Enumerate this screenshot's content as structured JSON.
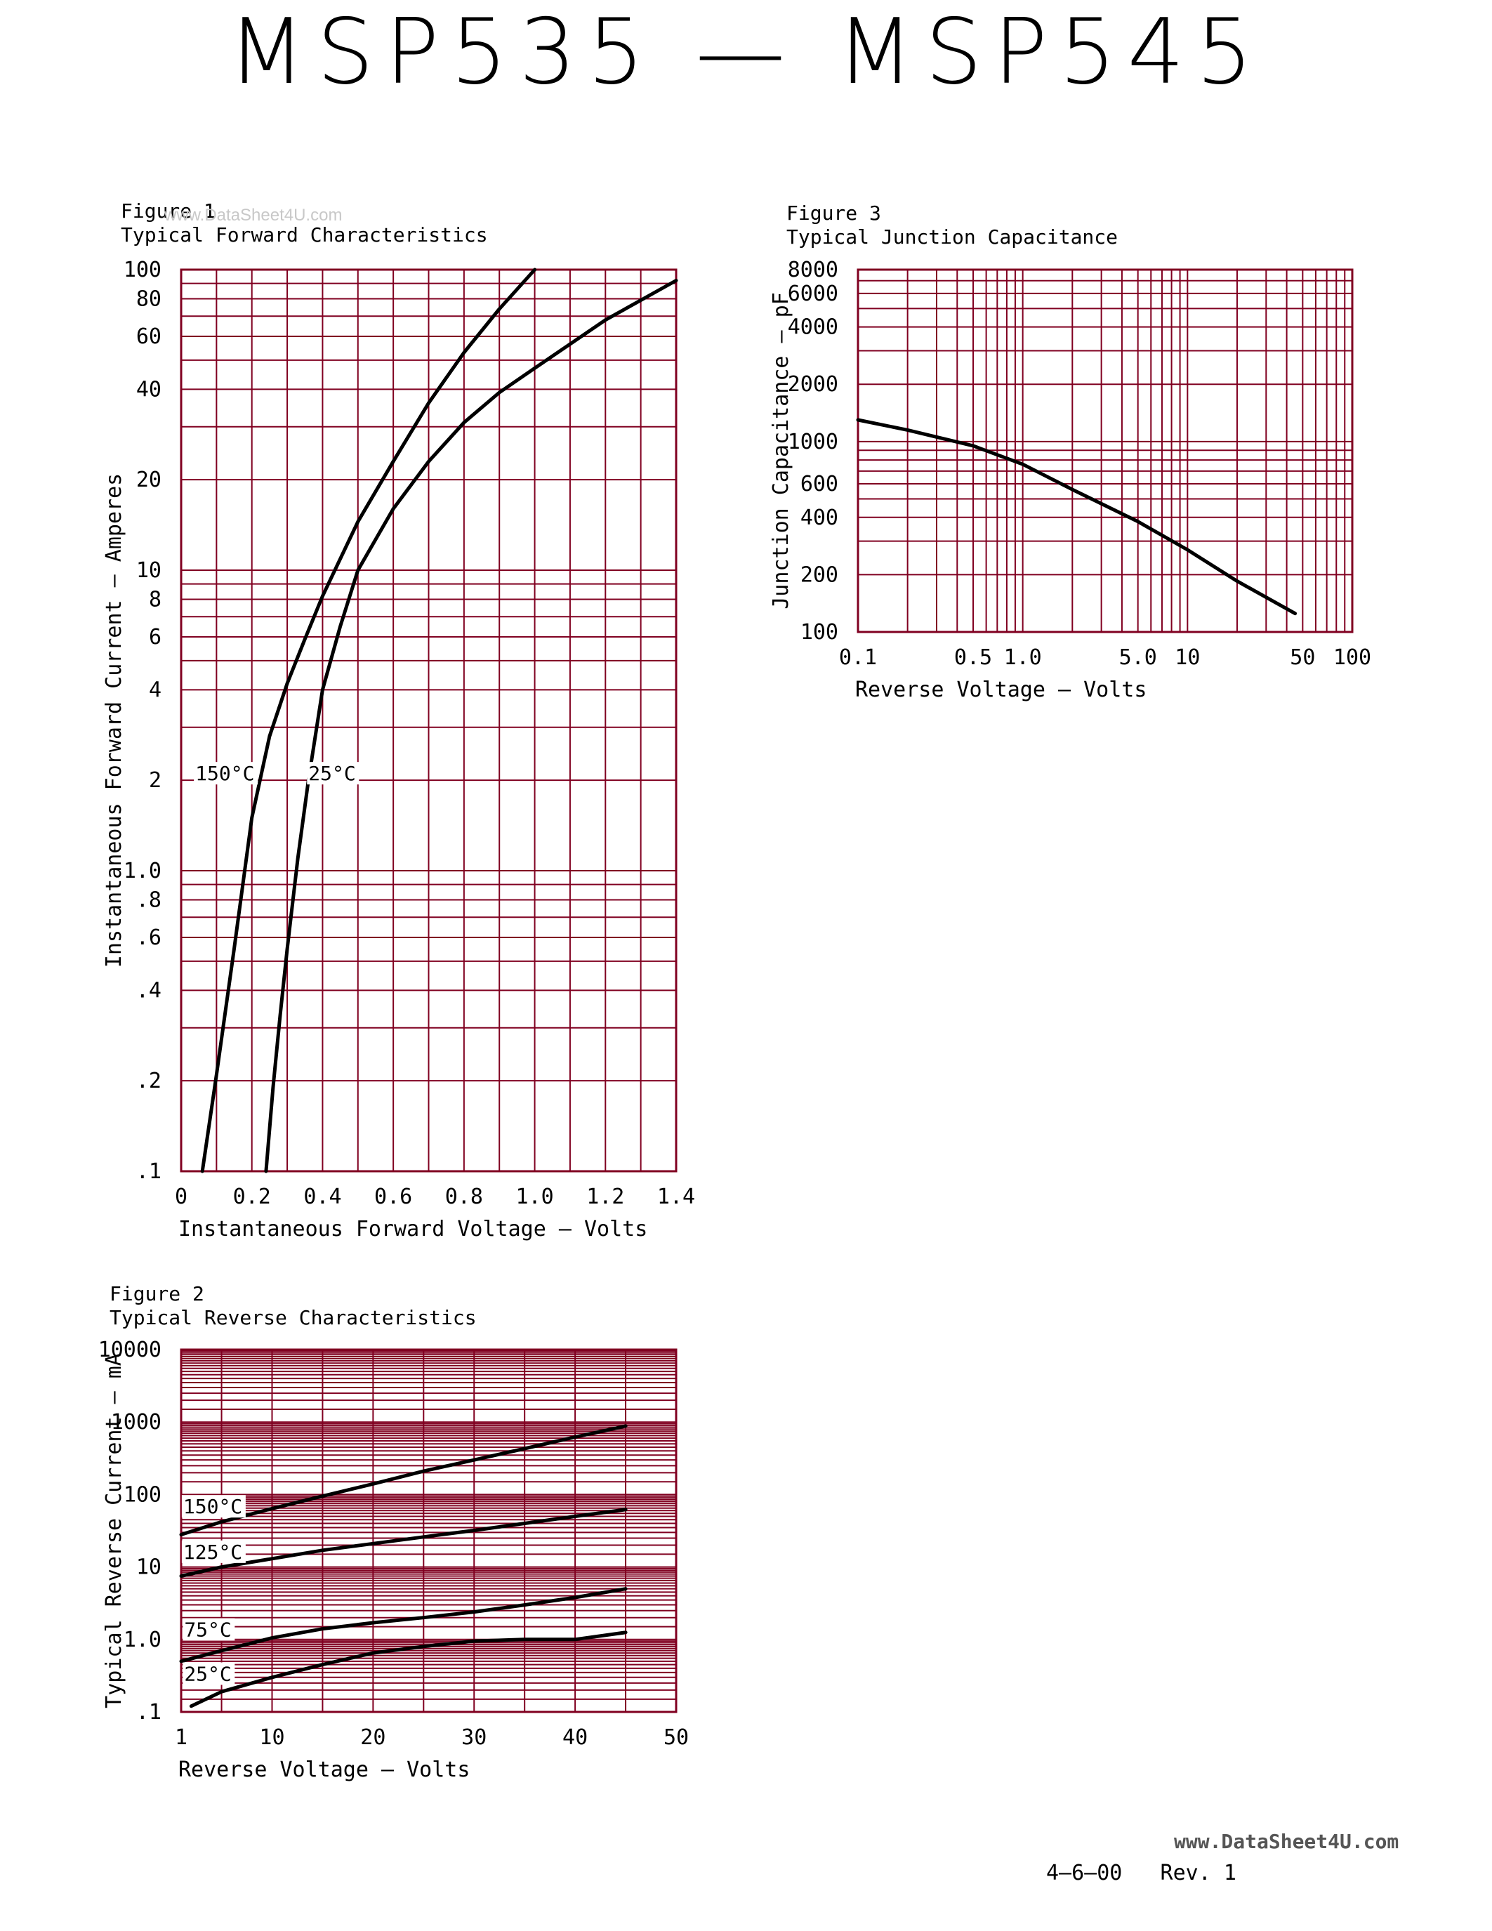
{
  "page": {
    "title": "MSP535 — MSP545",
    "watermark": "www.DataSheet4U.com",
    "footer_url": "www.DataSheet4U.com",
    "footer_rev": "4—6—00   Rev. 1"
  },
  "colors": {
    "grid": "#800020",
    "curve": "#000000"
  },
  "figures": [
    {
      "label": "Figure 1",
      "caption": "Typical Forward Characteristics"
    },
    {
      "label": "Figure 2",
      "caption": "Typical Reverse Characteristics"
    },
    {
      "label": "Figure 3",
      "caption": "Typical Junction Capacitance"
    }
  ],
  "chart_data": [
    {
      "id": "fig1",
      "type": "line",
      "title": "Figure 1 Typical Forward Characteristics",
      "xlabel": "Instantaneous Forward Voltage — Volts",
      "ylabel": "Instantaneous Forward Current — Amperes",
      "xlim": [
        0,
        1.4
      ],
      "ylim": [
        0.1,
        100
      ],
      "yscale": "log",
      "grid": true,
      "x_ticks": [
        {
          "v": 0,
          "t": "0"
        },
        {
          "v": 0.2,
          "t": "0.2"
        },
        {
          "v": 0.4,
          "t": "0.4"
        },
        {
          "v": 0.6,
          "t": "0.6"
        },
        {
          "v": 0.8,
          "t": "0.8"
        },
        {
          "v": 1.0,
          "t": "1.0"
        },
        {
          "v": 1.2,
          "t": "1.2"
        },
        {
          "v": 1.4,
          "t": "1.4"
        }
      ],
      "y_ticks": [
        {
          "v": 0.1,
          "t": ".1"
        },
        {
          "v": 0.2,
          "t": ".2"
        },
        {
          "v": 0.4,
          "t": ".4"
        },
        {
          "v": 0.6,
          "t": ".6"
        },
        {
          "v": 0.8,
          "t": ".8"
        },
        {
          "v": 1,
          "t": "1.0"
        },
        {
          "v": 2,
          "t": "2"
        },
        {
          "v": 4,
          "t": "4"
        },
        {
          "v": 6,
          "t": "6"
        },
        {
          "v": 8,
          "t": "8"
        },
        {
          "v": 10,
          "t": "10"
        },
        {
          "v": 20,
          "t": "20"
        },
        {
          "v": 40,
          "t": "40"
        },
        {
          "v": 60,
          "t": "60"
        },
        {
          "v": 80,
          "t": "80"
        },
        {
          "v": 100,
          "t": "100"
        }
      ],
      "series": [
        {
          "name": "150°C",
          "label_at": [
            0.04,
            2
          ],
          "x": [
            0.06,
            0.1,
            0.15,
            0.2,
            0.25,
            0.3,
            0.35,
            0.4,
            0.5,
            0.6,
            0.7,
            0.8,
            0.9,
            1.0
          ],
          "y": [
            0.1,
            0.21,
            0.55,
            1.5,
            2.8,
            4.2,
            5.9,
            8.2,
            14.5,
            23,
            36,
            53,
            74,
            100
          ]
        },
        {
          "name": "25°C",
          "label_at": [
            0.36,
            2
          ],
          "x": [
            0.24,
            0.26,
            0.28,
            0.3,
            0.33,
            0.36,
            0.4,
            0.45,
            0.5,
            0.6,
            0.7,
            0.8,
            0.9,
            1.0,
            1.2,
            1.4
          ],
          "y": [
            0.1,
            0.19,
            0.33,
            0.55,
            1.1,
            2.0,
            4.0,
            6.5,
            10,
            16,
            23,
            31,
            39,
            47,
            68,
            92
          ]
        }
      ]
    },
    {
      "id": "fig2",
      "type": "line",
      "title": "Figure 2 Typical Reverse Characteristics",
      "xlabel": "Reverse Voltage — Volts",
      "ylabel": "Typical Reverse Current — mA",
      "xlim": [
        1,
        50
      ],
      "ylim": [
        0.1,
        10000
      ],
      "yscale": "log",
      "grid": true,
      "x_ticks": [
        {
          "v": 1,
          "t": "1"
        },
        {
          "v": 10,
          "t": "10"
        },
        {
          "v": 20,
          "t": "20"
        },
        {
          "v": 30,
          "t": "30"
        },
        {
          "v": 40,
          "t": "40"
        },
        {
          "v": 50,
          "t": "50"
        }
      ],
      "y_ticks": [
        {
          "v": 0.1,
          "t": ".1"
        },
        {
          "v": 1,
          "t": "1.0"
        },
        {
          "v": 10,
          "t": "10"
        },
        {
          "v": 100,
          "t": "100"
        },
        {
          "v": 1000,
          "t": "1000"
        },
        {
          "v": 10000,
          "t": "10000"
        }
      ],
      "series": [
        {
          "name": "150°C",
          "label_at": [
            1.2,
            55
          ],
          "x": [
            1,
            5,
            10,
            15,
            20,
            25,
            30,
            35,
            40,
            45
          ],
          "y": [
            28,
            42,
            64,
            95,
            140,
            210,
            300,
            430,
            620,
            880
          ]
        },
        {
          "name": "125°C",
          "label_at": [
            1.2,
            13
          ],
          "x": [
            1,
            5,
            10,
            15,
            20,
            25,
            30,
            35,
            40,
            45
          ],
          "y": [
            7.5,
            10,
            13,
            17,
            21,
            26,
            32,
            40,
            50,
            62
          ]
        },
        {
          "name": "75°C",
          "label_at": [
            1.3,
            1.1
          ],
          "x": [
            1,
            5,
            10,
            15,
            20,
            25,
            30,
            35,
            40,
            45
          ],
          "y": [
            0.5,
            0.7,
            1.05,
            1.4,
            1.7,
            2.0,
            2.4,
            3.0,
            3.8,
            5.0
          ]
        },
        {
          "name": "25°C",
          "label_at": [
            1.3,
            0.27
          ],
          "x": [
            2,
            5,
            10,
            15,
            20,
            25,
            30,
            35,
            40,
            45
          ],
          "y": [
            0.12,
            0.19,
            0.3,
            0.45,
            0.65,
            0.8,
            0.95,
            1.0,
            1.0,
            1.25
          ]
        }
      ]
    },
    {
      "id": "fig3",
      "type": "line",
      "title": "Figure 3 Typical Junction Capacitance",
      "xlabel": "Reverse Voltage — Volts",
      "ylabel": "Junction Capacitance — pF",
      "xlim": [
        0.1,
        100
      ],
      "ylim": [
        100,
        8000
      ],
      "xscale": "log",
      "yscale": "log",
      "grid": true,
      "x_ticks": [
        {
          "v": 0.1,
          "t": "0.1"
        },
        {
          "v": 0.5,
          "t": "0.5"
        },
        {
          "v": 1,
          "t": "1.0"
        },
        {
          "v": 5,
          "t": "5.0"
        },
        {
          "v": 10,
          "t": "10"
        },
        {
          "v": 50,
          "t": "50"
        },
        {
          "v": 100,
          "t": "100"
        }
      ],
      "y_ticks": [
        {
          "v": 100,
          "t": "100"
        },
        {
          "v": 200,
          "t": "200"
        },
        {
          "v": 400,
          "t": "400"
        },
        {
          "v": 600,
          "t": "600"
        },
        {
          "v": 1000,
          "t": "1000"
        },
        {
          "v": 2000,
          "t": "2000"
        },
        {
          "v": 4000,
          "t": "4000"
        },
        {
          "v": 6000,
          "t": "6000"
        },
        {
          "v": 8000,
          "t": "8000"
        }
      ],
      "series": [
        {
          "x": [
            0.1,
            0.2,
            0.5,
            1,
            2,
            5,
            10,
            20,
            45
          ],
          "y": [
            1300,
            1150,
            950,
            760,
            560,
            380,
            270,
            185,
            125
          ]
        }
      ]
    }
  ]
}
